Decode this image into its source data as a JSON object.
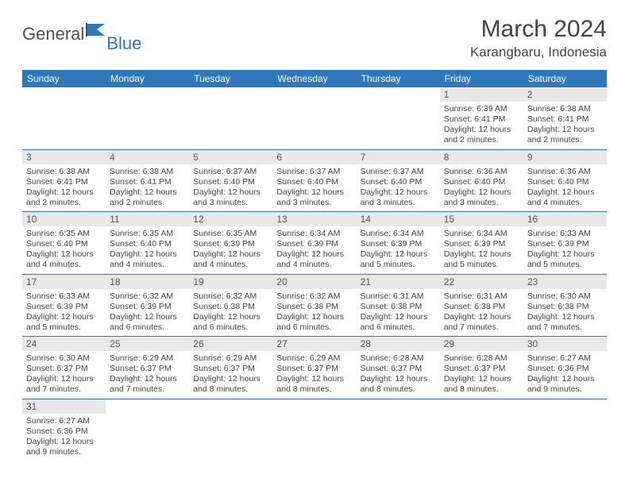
{
  "brand": {
    "part1": "General",
    "part2": "Blue",
    "flag_color": "#2f77bb",
    "text_gray": "#505050"
  },
  "title": "March 2024",
  "location": "Karangbaru, Indonesia",
  "colors": {
    "header_bg": "#2f77bb",
    "header_text": "#ffffff",
    "daynum_bg": "#e8e8e8",
    "cell_border": "#2f77bb",
    "body_text": "#444444"
  },
  "weekdays": [
    "Sunday",
    "Monday",
    "Tuesday",
    "Wednesday",
    "Thursday",
    "Friday",
    "Saturday"
  ],
  "weeks": [
    [
      null,
      null,
      null,
      null,
      null,
      {
        "n": "1",
        "sr": "Sunrise: 6:39 AM",
        "ss": "Sunset: 6:41 PM",
        "d1": "Daylight: 12 hours",
        "d2": "and 2 minutes."
      },
      {
        "n": "2",
        "sr": "Sunrise: 6:38 AM",
        "ss": "Sunset: 6:41 PM",
        "d1": "Daylight: 12 hours",
        "d2": "and 2 minutes."
      }
    ],
    [
      {
        "n": "3",
        "sr": "Sunrise: 6:38 AM",
        "ss": "Sunset: 6:41 PM",
        "d1": "Daylight: 12 hours",
        "d2": "and 2 minutes."
      },
      {
        "n": "4",
        "sr": "Sunrise: 6:38 AM",
        "ss": "Sunset: 6:41 PM",
        "d1": "Daylight: 12 hours",
        "d2": "and 2 minutes."
      },
      {
        "n": "5",
        "sr": "Sunrise: 6:37 AM",
        "ss": "Sunset: 6:40 PM",
        "d1": "Daylight: 12 hours",
        "d2": "and 3 minutes."
      },
      {
        "n": "6",
        "sr": "Sunrise: 6:37 AM",
        "ss": "Sunset: 6:40 PM",
        "d1": "Daylight: 12 hours",
        "d2": "and 3 minutes."
      },
      {
        "n": "7",
        "sr": "Sunrise: 6:37 AM",
        "ss": "Sunset: 6:40 PM",
        "d1": "Daylight: 12 hours",
        "d2": "and 3 minutes."
      },
      {
        "n": "8",
        "sr": "Sunrise: 6:36 AM",
        "ss": "Sunset: 6:40 PM",
        "d1": "Daylight: 12 hours",
        "d2": "and 3 minutes."
      },
      {
        "n": "9",
        "sr": "Sunrise: 6:36 AM",
        "ss": "Sunset: 6:40 PM",
        "d1": "Daylight: 12 hours",
        "d2": "and 4 minutes."
      }
    ],
    [
      {
        "n": "10",
        "sr": "Sunrise: 6:35 AM",
        "ss": "Sunset: 6:40 PM",
        "d1": "Daylight: 12 hours",
        "d2": "and 4 minutes."
      },
      {
        "n": "11",
        "sr": "Sunrise: 6:35 AM",
        "ss": "Sunset: 6:40 PM",
        "d1": "Daylight: 12 hours",
        "d2": "and 4 minutes."
      },
      {
        "n": "12",
        "sr": "Sunrise: 6:35 AM",
        "ss": "Sunset: 6:39 PM",
        "d1": "Daylight: 12 hours",
        "d2": "and 4 minutes."
      },
      {
        "n": "13",
        "sr": "Sunrise: 6:34 AM",
        "ss": "Sunset: 6:39 PM",
        "d1": "Daylight: 12 hours",
        "d2": "and 4 minutes."
      },
      {
        "n": "14",
        "sr": "Sunrise: 6:34 AM",
        "ss": "Sunset: 6:39 PM",
        "d1": "Daylight: 12 hours",
        "d2": "and 5 minutes."
      },
      {
        "n": "15",
        "sr": "Sunrise: 6:34 AM",
        "ss": "Sunset: 6:39 PM",
        "d1": "Daylight: 12 hours",
        "d2": "and 5 minutes."
      },
      {
        "n": "16",
        "sr": "Sunrise: 6:33 AM",
        "ss": "Sunset: 6:39 PM",
        "d1": "Daylight: 12 hours",
        "d2": "and 5 minutes."
      }
    ],
    [
      {
        "n": "17",
        "sr": "Sunrise: 6:33 AM",
        "ss": "Sunset: 6:39 PM",
        "d1": "Daylight: 12 hours",
        "d2": "and 5 minutes."
      },
      {
        "n": "18",
        "sr": "Sunrise: 6:32 AM",
        "ss": "Sunset: 6:39 PM",
        "d1": "Daylight: 12 hours",
        "d2": "and 6 minutes."
      },
      {
        "n": "19",
        "sr": "Sunrise: 6:32 AM",
        "ss": "Sunset: 6:38 PM",
        "d1": "Daylight: 12 hours",
        "d2": "and 6 minutes."
      },
      {
        "n": "20",
        "sr": "Sunrise: 6:32 AM",
        "ss": "Sunset: 6:38 PM",
        "d1": "Daylight: 12 hours",
        "d2": "and 6 minutes."
      },
      {
        "n": "21",
        "sr": "Sunrise: 6:31 AM",
        "ss": "Sunset: 6:38 PM",
        "d1": "Daylight: 12 hours",
        "d2": "and 6 minutes."
      },
      {
        "n": "22",
        "sr": "Sunrise: 6:31 AM",
        "ss": "Sunset: 6:38 PM",
        "d1": "Daylight: 12 hours",
        "d2": "and 7 minutes."
      },
      {
        "n": "23",
        "sr": "Sunrise: 6:30 AM",
        "ss": "Sunset: 6:38 PM",
        "d1": "Daylight: 12 hours",
        "d2": "and 7 minutes."
      }
    ],
    [
      {
        "n": "24",
        "sr": "Sunrise: 6:30 AM",
        "ss": "Sunset: 6:37 PM",
        "d1": "Daylight: 12 hours",
        "d2": "and 7 minutes."
      },
      {
        "n": "25",
        "sr": "Sunrise: 6:29 AM",
        "ss": "Sunset: 6:37 PM",
        "d1": "Daylight: 12 hours",
        "d2": "and 7 minutes."
      },
      {
        "n": "26",
        "sr": "Sunrise: 6:29 AM",
        "ss": "Sunset: 6:37 PM",
        "d1": "Daylight: 12 hours",
        "d2": "and 8 minutes."
      },
      {
        "n": "27",
        "sr": "Sunrise: 6:29 AM",
        "ss": "Sunset: 6:37 PM",
        "d1": "Daylight: 12 hours",
        "d2": "and 8 minutes."
      },
      {
        "n": "28",
        "sr": "Sunrise: 6:28 AM",
        "ss": "Sunset: 6:37 PM",
        "d1": "Daylight: 12 hours",
        "d2": "and 8 minutes."
      },
      {
        "n": "29",
        "sr": "Sunrise: 6:28 AM",
        "ss": "Sunset: 6:37 PM",
        "d1": "Daylight: 12 hours",
        "d2": "and 8 minutes."
      },
      {
        "n": "30",
        "sr": "Sunrise: 6:27 AM",
        "ss": "Sunset: 6:36 PM",
        "d1": "Daylight: 12 hours",
        "d2": "and 9 minutes."
      }
    ],
    [
      {
        "n": "31",
        "sr": "Sunrise: 6:27 AM",
        "ss": "Sunset: 6:36 PM",
        "d1": "Daylight: 12 hours",
        "d2": "and 9 minutes."
      },
      null,
      null,
      null,
      null,
      null,
      null
    ]
  ]
}
